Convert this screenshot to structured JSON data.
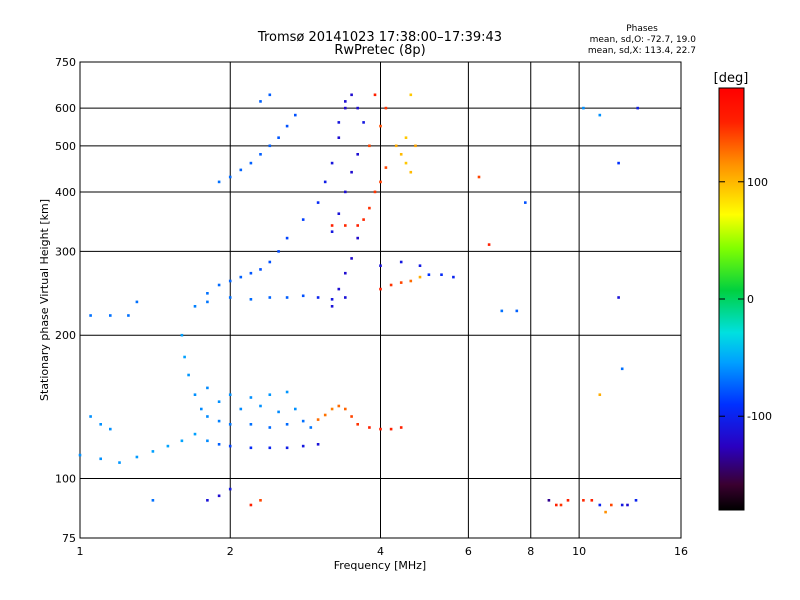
{
  "chart_data": {
    "type": "scatter",
    "title": "Tromsø 20141023 17:38:00–17:39:43",
    "subtitle": "RwPretec (8p)",
    "xlabel": "Frequency [MHz]",
    "ylabel": "Stationary phase Virtual Height [km]",
    "xscale": "log",
    "yscale": "log",
    "xlim": [
      1,
      16
    ],
    "ylim": [
      75,
      750
    ],
    "x_ticks": [
      1,
      2,
      4,
      6,
      8,
      10,
      16
    ],
    "x_tick_labels": [
      "1",
      "2",
      "4",
      "6",
      "8",
      "10",
      "16"
    ],
    "y_ticks": [
      75,
      100,
      200,
      300,
      400,
      500,
      600,
      750
    ],
    "y_tick_labels": [
      "75",
      "100",
      "200",
      "300",
      "400",
      "500",
      "600",
      "750"
    ],
    "grid": true,
    "stats": {
      "heading": "Phases",
      "line_o": "mean, sd,O: -72.7, 19.0",
      "line_x": "mean, sd,X: 113.4, 22.7"
    },
    "colorbar": {
      "label": "[deg]",
      "range": [
        -180,
        180
      ],
      "ticks": [
        100,
        0,
        -100
      ],
      "tick_labels": [
        "100",
        "0",
        "-100"
      ]
    },
    "series": [
      {
        "points": [
          [
            1.0,
            112,
            -60
          ],
          [
            1.1,
            110,
            -60
          ],
          [
            1.2,
            108,
            -58
          ],
          [
            1.3,
            111,
            -57
          ],
          [
            1.4,
            114,
            -55
          ],
          [
            1.5,
            117,
            -54
          ],
          [
            1.6,
            120,
            -54
          ],
          [
            1.7,
            124,
            -55
          ],
          [
            1.8,
            120,
            -62
          ],
          [
            1.9,
            118,
            -75
          ],
          [
            2.0,
            117,
            -85
          ],
          [
            2.2,
            116,
            -95
          ],
          [
            2.4,
            116,
            -100
          ],
          [
            2.6,
            116,
            -105
          ],
          [
            2.8,
            117,
            -110
          ],
          [
            3.0,
            118,
            -115
          ]
        ]
      },
      {
        "points": [
          [
            1.05,
            135,
            -60
          ],
          [
            1.1,
            130,
            -60
          ],
          [
            1.15,
            127,
            -60
          ],
          [
            1.05,
            220,
            -70
          ],
          [
            1.15,
            220,
            -70
          ],
          [
            1.25,
            220,
            -70
          ],
          [
            1.3,
            235,
            -70
          ]
        ]
      },
      {
        "points": [
          [
            1.6,
            200,
            -55
          ],
          [
            1.62,
            180,
            -55
          ],
          [
            1.65,
            165,
            -58
          ],
          [
            1.7,
            150,
            -60
          ],
          [
            1.75,
            140,
            -62
          ],
          [
            1.8,
            135,
            -62
          ],
          [
            1.9,
            132,
            -65
          ],
          [
            2.0,
            130,
            -68
          ],
          [
            2.2,
            130,
            -70
          ],
          [
            2.4,
            128,
            -72
          ],
          [
            2.6,
            130,
            -72
          ],
          [
            2.8,
            132,
            -70
          ],
          [
            2.9,
            128,
            -68
          ],
          [
            2.0,
            150,
            -60
          ],
          [
            2.2,
            148,
            -60
          ],
          [
            2.4,
            150,
            -58
          ],
          [
            2.6,
            152,
            -58
          ],
          [
            1.8,
            155,
            -62
          ],
          [
            1.9,
            145,
            -60
          ],
          [
            2.1,
            140,
            -62
          ],
          [
            2.3,
            142,
            -60
          ],
          [
            2.5,
            138,
            -62
          ],
          [
            2.7,
            140,
            -60
          ]
        ]
      },
      {
        "points": [
          [
            1.7,
            230,
            -65
          ],
          [
            1.8,
            245,
            -70
          ],
          [
            1.9,
            255,
            -72
          ],
          [
            2.0,
            260,
            -74
          ],
          [
            2.1,
            265,
            -75
          ],
          [
            2.2,
            270,
            -78
          ],
          [
            2.3,
            275,
            -80
          ],
          [
            2.4,
            285,
            -80
          ],
          [
            2.5,
            300,
            -82
          ],
          [
            2.6,
            320,
            -84
          ],
          [
            2.8,
            350,
            -86
          ],
          [
            3.0,
            380,
            -95
          ],
          [
            3.1,
            420,
            -105
          ],
          [
            3.2,
            460,
            -112
          ],
          [
            3.3,
            520,
            -118
          ],
          [
            3.4,
            600,
            -122
          ],
          [
            1.8,
            235,
            -68
          ],
          [
            2.0,
            240,
            -70
          ],
          [
            2.2,
            238,
            -72
          ],
          [
            2.4,
            240,
            -74
          ],
          [
            2.6,
            240,
            -76
          ],
          [
            2.8,
            242,
            -80
          ],
          [
            3.0,
            240,
            -100
          ],
          [
            3.2,
            238,
            -110
          ],
          [
            3.4,
            240,
            -115
          ]
        ]
      },
      {
        "points": [
          [
            1.9,
            420,
            -70
          ],
          [
            2.0,
            430,
            -72
          ],
          [
            2.1,
            445,
            -74
          ],
          [
            2.2,
            460,
            -75
          ],
          [
            2.3,
            480,
            -76
          ],
          [
            2.4,
            500,
            -76
          ],
          [
            2.5,
            520,
            -78
          ],
          [
            2.6,
            550,
            -80
          ],
          [
            2.7,
            580,
            -80
          ],
          [
            2.3,
            620,
            -75
          ],
          [
            2.4,
            640,
            -76
          ]
        ]
      },
      {
        "points": [
          [
            3.2,
            230,
            -115
          ],
          [
            3.3,
            250,
            -118
          ],
          [
            3.4,
            270,
            -120
          ],
          [
            3.5,
            290,
            -122
          ],
          [
            3.6,
            320,
            -122
          ],
          [
            3.2,
            330,
            -110
          ],
          [
            3.3,
            360,
            -115
          ],
          [
            3.4,
            400,
            -118
          ],
          [
            3.5,
            440,
            -120
          ],
          [
            3.6,
            480,
            -118
          ],
          [
            3.3,
            560,
            -112
          ],
          [
            3.4,
            620,
            -118
          ],
          [
            3.5,
            640,
            -120
          ],
          [
            3.6,
            600,
            -118
          ],
          [
            3.7,
            560,
            -110
          ]
        ]
      },
      {
        "points": [
          [
            3.2,
            340,
            150
          ],
          [
            3.4,
            340,
            148
          ],
          [
            3.6,
            340,
            150
          ],
          [
            3.7,
            350,
            148
          ],
          [
            3.8,
            370,
            146
          ],
          [
            3.9,
            400,
            145
          ],
          [
            4.0,
            420,
            142
          ],
          [
            4.1,
            450,
            140
          ],
          [
            3.8,
            500,
            140
          ],
          [
            4.0,
            550,
            138
          ],
          [
            4.1,
            600,
            145
          ],
          [
            3.9,
            640,
            150
          ]
        ]
      },
      {
        "points": [
          [
            4.3,
            500,
            110
          ],
          [
            4.4,
            480,
            105
          ],
          [
            4.5,
            460,
            100
          ],
          [
            4.6,
            440,
            105
          ],
          [
            4.5,
            520,
            100
          ],
          [
            4.7,
            500,
            112
          ],
          [
            4.6,
            640,
            100
          ]
        ]
      },
      {
        "points": [
          [
            3.0,
            133,
            130
          ],
          [
            3.1,
            136,
            128
          ],
          [
            3.2,
            140,
            125
          ],
          [
            3.3,
            142,
            130
          ],
          [
            3.4,
            140,
            132
          ],
          [
            3.5,
            135,
            140
          ],
          [
            3.6,
            130,
            145
          ],
          [
            3.8,
            128,
            150
          ],
          [
            4.0,
            127,
            152
          ],
          [
            4.2,
            127,
            150
          ],
          [
            4.4,
            128,
            150
          ]
        ]
      },
      {
        "points": [
          [
            4.0,
            250,
            150
          ],
          [
            4.2,
            255,
            145
          ],
          [
            4.4,
            258,
            140
          ],
          [
            4.6,
            260,
            130
          ],
          [
            4.8,
            265,
            110
          ],
          [
            5.0,
            268,
            -90
          ],
          [
            5.3,
            268,
            -95
          ],
          [
            5.6,
            265,
            -100
          ],
          [
            4.0,
            280,
            -115
          ],
          [
            4.4,
            285,
            -110
          ],
          [
            4.8,
            280,
            -108
          ]
        ]
      },
      {
        "points": [
          [
            6.3,
            430,
            140
          ],
          [
            6.6,
            310,
            150
          ],
          [
            7.0,
            225,
            -70
          ],
          [
            7.5,
            225,
            -75
          ],
          [
            7.8,
            380,
            -80
          ],
          [
            8.7,
            90,
            -140
          ],
          [
            9.0,
            88,
            150
          ],
          [
            9.2,
            88,
            145
          ],
          [
            9.5,
            90,
            150
          ],
          [
            10.2,
            90,
            148
          ],
          [
            10.6,
            90,
            150
          ],
          [
            11.0,
            88,
            -100
          ],
          [
            11.3,
            85,
            120
          ],
          [
            11.6,
            88,
            140
          ],
          [
            12.2,
            88,
            -110
          ],
          [
            12.5,
            88,
            -120
          ],
          [
            13.0,
            90,
            -100
          ],
          [
            10.2,
            600,
            -60
          ],
          [
            11.0,
            580,
            -60
          ],
          [
            12.0,
            460,
            -90
          ],
          [
            12.0,
            240,
            -115
          ],
          [
            13.1,
            600,
            -105
          ],
          [
            11.0,
            150,
            110
          ],
          [
            12.2,
            170,
            -70
          ]
        ]
      },
      {
        "points": [
          [
            1.8,
            90,
            -115
          ],
          [
            1.9,
            92,
            -120
          ],
          [
            2.0,
            95,
            -110
          ],
          [
            2.2,
            88,
            150
          ],
          [
            2.3,
            90,
            140
          ],
          [
            1.4,
            90,
            -70
          ]
        ]
      }
    ]
  }
}
